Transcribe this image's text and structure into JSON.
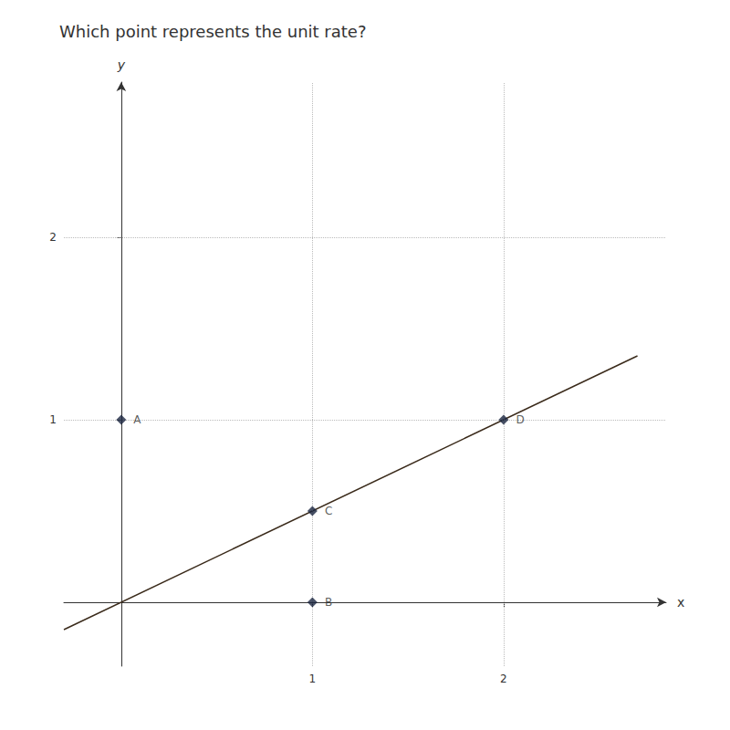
{
  "chart_data": {
    "type": "scatter",
    "title": "Which point represents the unit rate?",
    "x_label": "x",
    "y_label": "y",
    "xlim": [
      -0.3,
      2.85
    ],
    "ylim": [
      -0.35,
      2.85
    ],
    "xticks": [
      1,
      2
    ],
    "yticks": [
      1,
      2
    ],
    "grid": true,
    "series": [
      {
        "type": "line",
        "x": [
          -0.3,
          2.7
        ],
        "values": [
          -0.15,
          1.35
        ],
        "color": "#3a2a1a",
        "marker": "none"
      },
      {
        "type": "scatter",
        "labels": [
          "A",
          "B",
          "C",
          "D"
        ],
        "x": [
          0,
          1,
          1,
          2
        ],
        "values": [
          1,
          0,
          0.5,
          1
        ],
        "color": "#1a2540",
        "marker": "diamond"
      }
    ]
  }
}
